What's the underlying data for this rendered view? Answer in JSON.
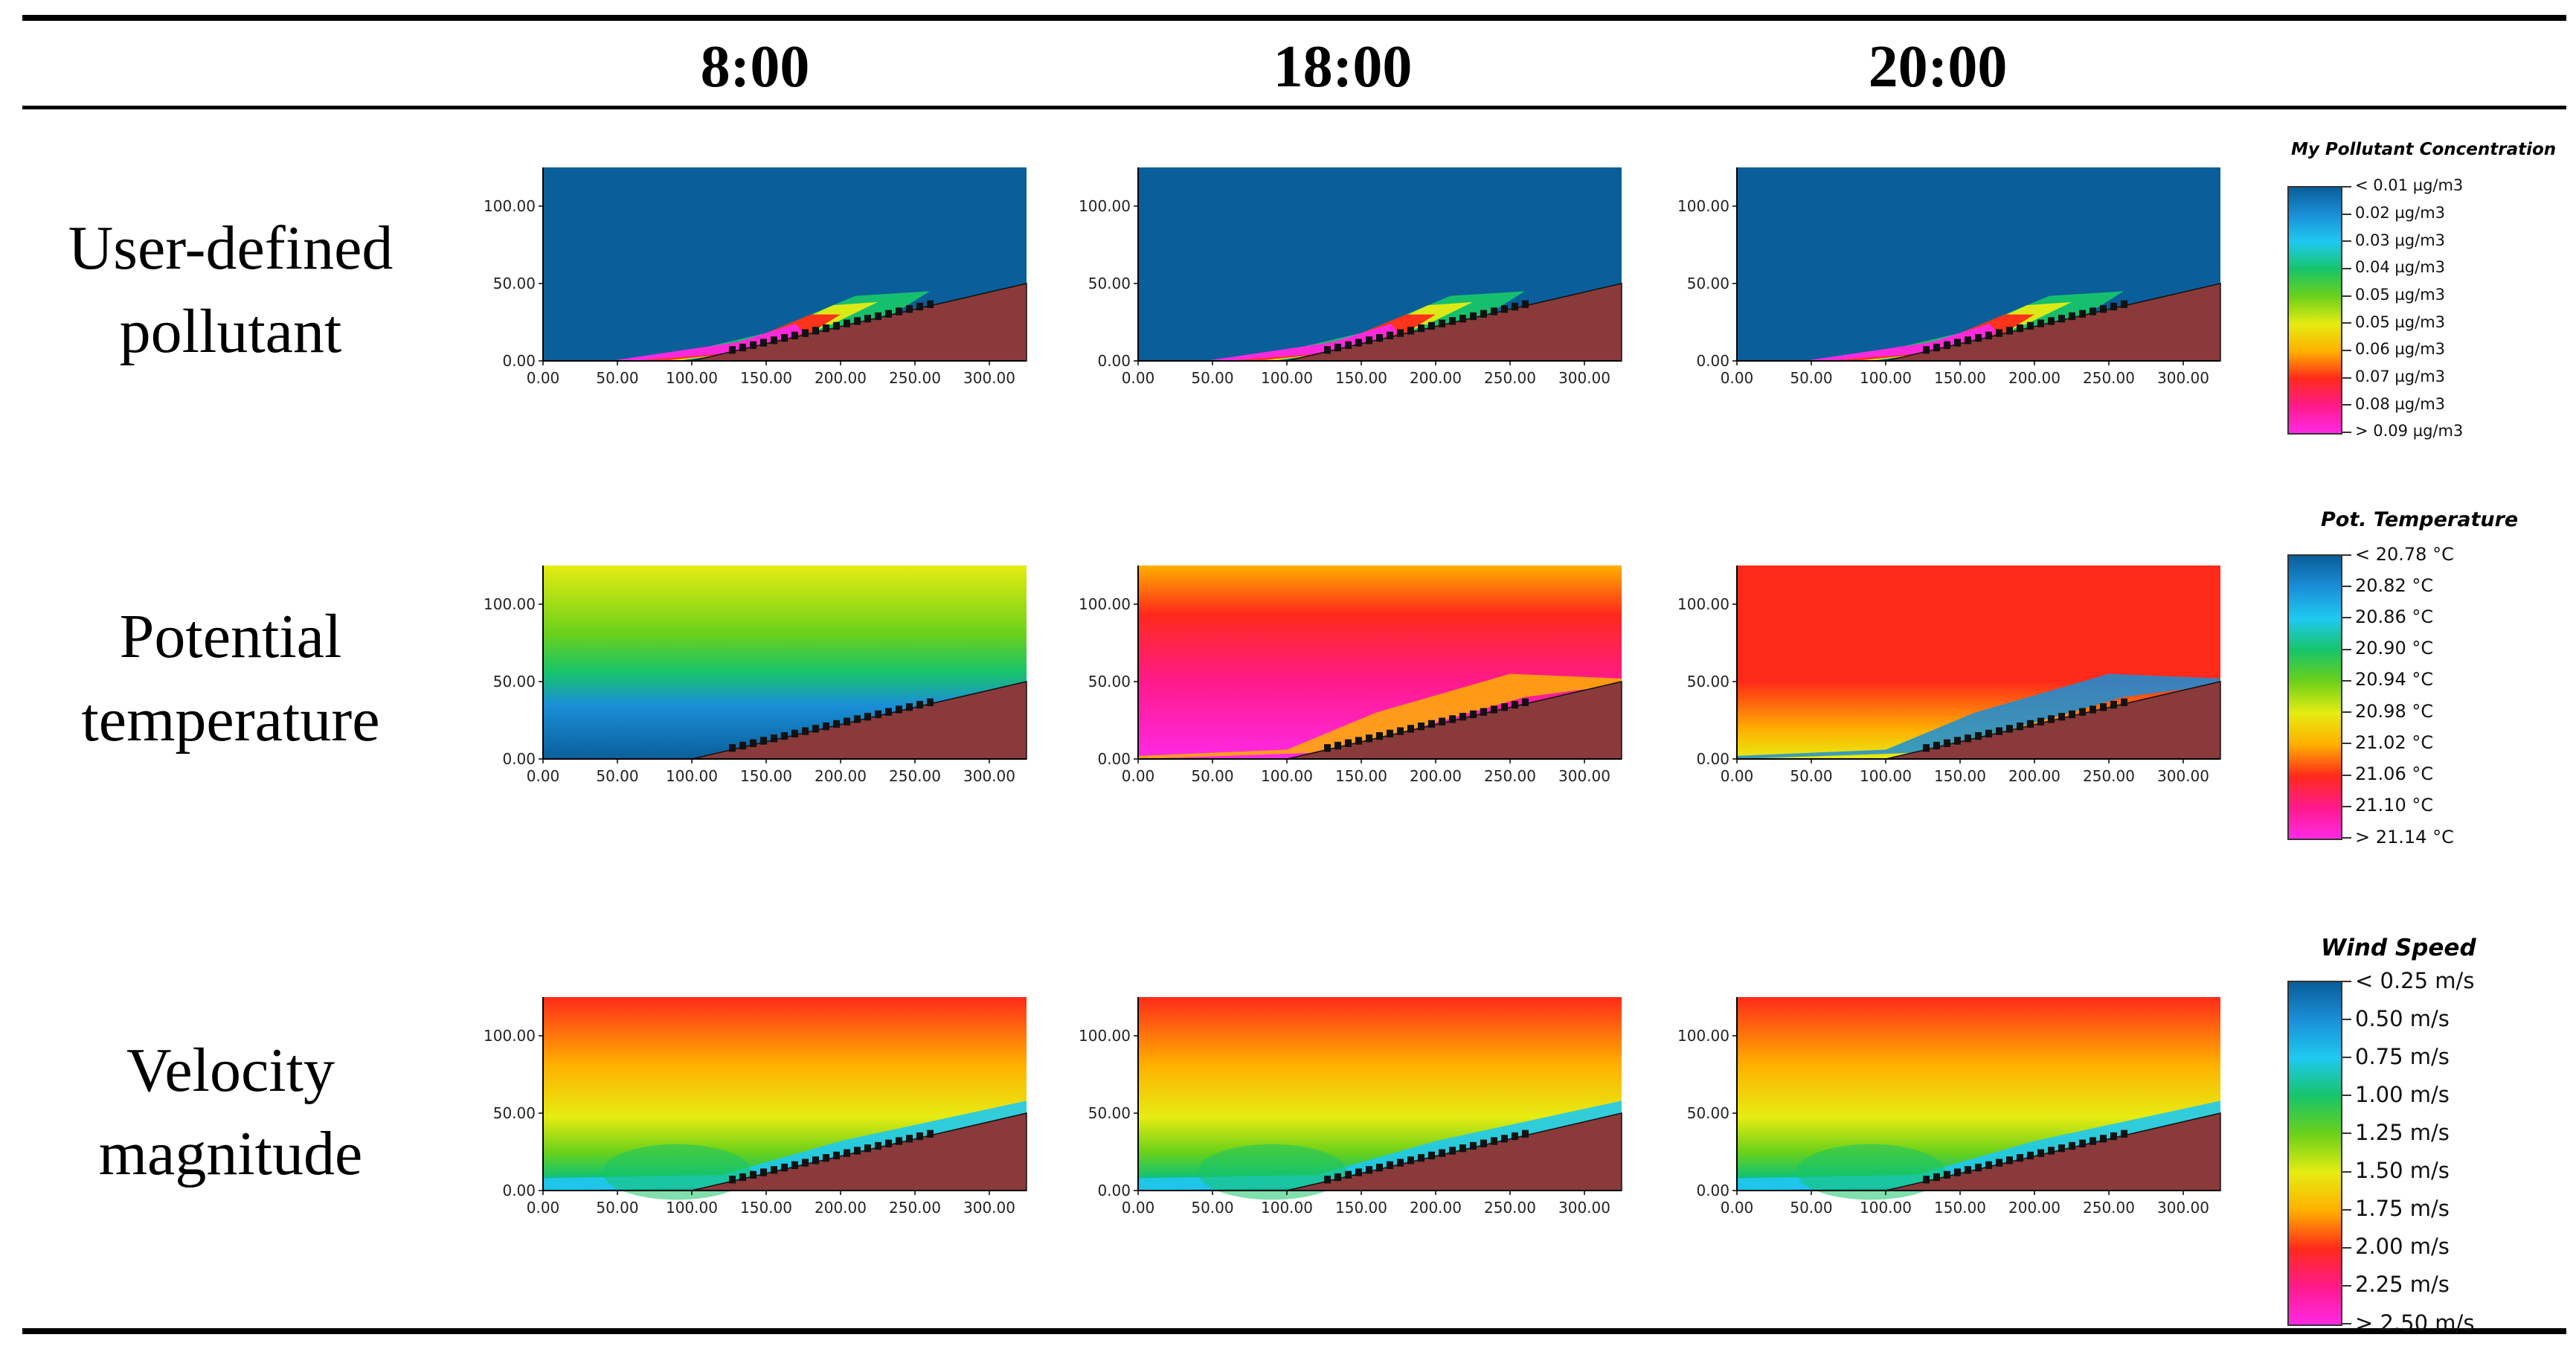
{
  "columns": [
    "8:00",
    "18:00",
    "20:00"
  ],
  "rows": [
    {
      "label_line1": "User-defined",
      "label_line2": "pollutant"
    },
    {
      "label_line1": "Potential",
      "label_line2": "temperature"
    },
    {
      "label_line1": "Velocity",
      "label_line2": "magnitude"
    }
  ],
  "axes": {
    "x_ticks": [
      "0.00",
      "50.00",
      "100.00",
      "150.00",
      "200.00",
      "250.00",
      "300.00"
    ],
    "y_ticks": [
      "0.00",
      "50.00",
      "100.00"
    ]
  },
  "legends": [
    {
      "title": "My Pollutant Concentration",
      "labels": [
        "< 0.01 µg/m3",
        "0.02  µg/m3",
        "0.03  µg/m3",
        "0.04  µg/m3",
        "0.05  µg/m3",
        "0.05  µg/m3",
        "0.06  µg/m3",
        "0.07  µg/m3",
        "0.08  µg/m3",
        "> 0.09 µg/m3"
      ],
      "colors": [
        "#0a5e9a",
        "#1a8fd8",
        "#1fc9f0",
        "#17c46a",
        "#6cd11a",
        "#e6ec12",
        "#ffb000",
        "#ff2a1a",
        "#ff1a8a",
        "#ff29e6"
      ]
    },
    {
      "title": "Pot. Temperature",
      "labels": [
        "< 20.78 °C",
        "20.82  °C",
        "20.86  °C",
        "20.90  °C",
        "20.94  °C",
        "20.98  °C",
        "21.02  °C",
        "21.06  °C",
        "21.10  °C",
        "> 21.14 °C"
      ],
      "colors": [
        "#0a5e9a",
        "#1a8fd8",
        "#1fc9f0",
        "#17c46a",
        "#6cd11a",
        "#e6ec12",
        "#ffb000",
        "#ff2a1a",
        "#ff1a8a",
        "#ff29e6"
      ]
    },
    {
      "title": "Wind Speed",
      "labels": [
        "< 0.25 m/s",
        "0.50  m/s",
        "0.75  m/s",
        "1.00  m/s",
        "1.25  m/s",
        "1.50  m/s",
        "1.75  m/s",
        "2.00  m/s",
        "2.25  m/s",
        "> 2.50 m/s"
      ],
      "colors": [
        "#0a5e9a",
        "#1a8fd8",
        "#1fc9f0",
        "#17c46a",
        "#6cd11a",
        "#e6ec12",
        "#ffb000",
        "#ff2a1a",
        "#ff1a8a",
        "#ff29e6"
      ]
    }
  ],
  "colors": {
    "terrain": "#8a3a3a",
    "buildings": "#111111",
    "frame": "#000000"
  }
}
